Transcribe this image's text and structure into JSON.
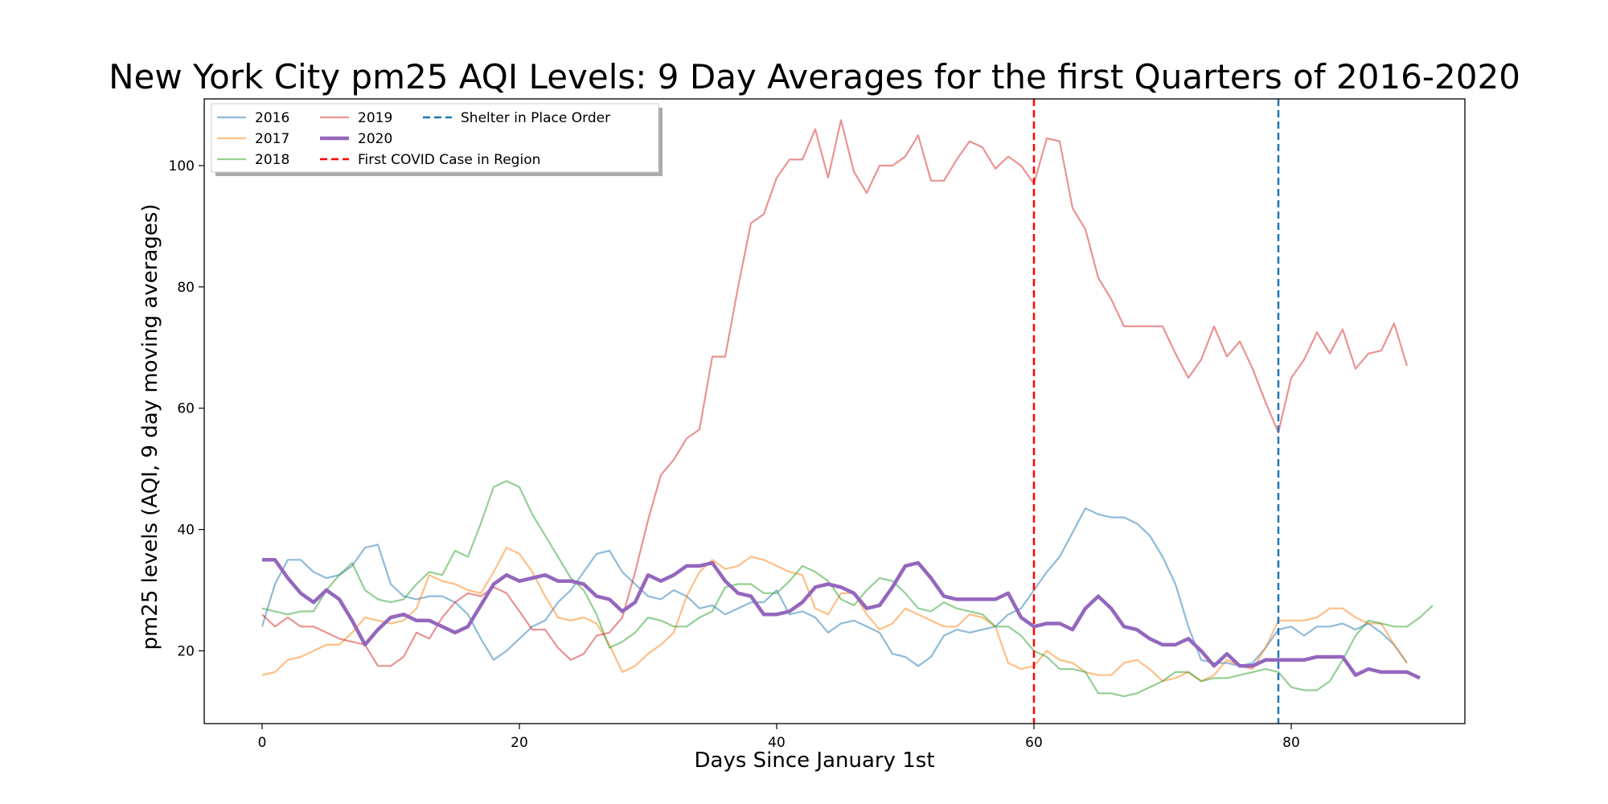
{
  "chart_data": {
    "type": "line",
    "title": "New York City pm25 AQI Levels: 9 Day Averages for the first Quarters of 2016-2020",
    "xlabel": "Days Since January 1st",
    "ylabel": "pm25 levels (AQI, 9 day moving averages)",
    "xlim": [
      -4.5,
      93.5
    ],
    "ylim": [
      8,
      111
    ],
    "xticks": [
      0,
      20,
      40,
      60,
      80
    ],
    "yticks": [
      20,
      40,
      60,
      80,
      100
    ],
    "grid": false,
    "legend_position": "top-left",
    "series": [
      {
        "name": "2016",
        "color": "#1f77b4",
        "values": [
          24,
          31,
          35,
          35,
          33,
          32,
          32.5,
          34,
          37,
          37.5,
          31,
          29,
          28.5,
          29,
          29,
          28,
          26,
          22,
          18.5,
          20,
          22,
          24,
          25,
          28,
          30,
          33,
          36,
          36.5,
          33,
          31,
          29,
          28.5,
          30,
          29,
          27,
          27.5,
          26,
          27,
          28,
          28,
          30,
          26,
          26.5,
          25.5,
          23,
          24.5,
          25,
          24,
          23,
          19.5,
          19,
          17.5,
          19,
          22.5,
          23.5,
          23,
          23.5,
          24,
          26,
          27,
          30,
          33,
          35.5,
          39.5,
          43.5,
          42.5,
          42,
          42,
          41,
          39,
          35.5,
          31,
          24,
          18.5,
          18,
          18,
          17.5,
          18,
          20.5,
          23.5,
          24,
          22.5,
          24,
          24,
          24.5,
          23.5,
          24.5,
          23,
          21,
          18
        ]
      },
      {
        "name": "2017",
        "color": "#ff7f0e",
        "values": [
          16,
          16.5,
          18.5,
          19,
          20,
          21,
          21,
          23,
          25.5,
          25,
          24.5,
          25,
          27,
          32.5,
          31.5,
          31,
          30,
          29.5,
          33,
          37,
          36,
          33,
          29,
          25.5,
          25,
          25.5,
          24.5,
          21,
          16.5,
          17.5,
          19.5,
          21,
          23,
          29,
          33,
          35,
          33.5,
          34,
          35.5,
          35,
          34,
          33,
          32.5,
          27,
          26,
          29.5,
          29.5,
          26,
          23.5,
          24.5,
          27,
          26,
          25,
          24,
          24,
          26,
          25.5,
          24,
          18,
          17,
          17.5,
          20,
          18.5,
          18,
          16.5,
          16,
          16,
          18,
          18.5,
          17,
          15,
          15.5,
          16.5,
          15,
          16,
          18.5,
          17.5,
          17,
          20.5,
          25,
          25,
          25,
          25.5,
          27,
          27,
          25.5,
          24.5,
          24.5,
          21,
          18
        ]
      },
      {
        "name": "2018",
        "color": "#2ca02c",
        "values": [
          27,
          26.5,
          26,
          26.5,
          26.5,
          30,
          32.5,
          34.5,
          30,
          28.5,
          28,
          28.5,
          31,
          33,
          32.5,
          36.5,
          35.5,
          41,
          47,
          48,
          47,
          42.5,
          39,
          35.5,
          32,
          30,
          26,
          20.5,
          21.5,
          23,
          25.5,
          25,
          24,
          24,
          25.5,
          26.5,
          30.5,
          31,
          31,
          29.5,
          29.5,
          31.5,
          34,
          33,
          31.5,
          28.5,
          27.5,
          30,
          32,
          31.5,
          29.5,
          27,
          26.5,
          28,
          27,
          26.5,
          26,
          24,
          24,
          22.5,
          20,
          19,
          17,
          17,
          16.5,
          13,
          13,
          12.5,
          13,
          14,
          15,
          16.5,
          16.5,
          15,
          15.5,
          15.5,
          16,
          16.5,
          17,
          16.5,
          14,
          13.5,
          13.5,
          15,
          18.5,
          22.5,
          25,
          24.5,
          24,
          24,
          25.5,
          27.5
        ]
      },
      {
        "name": "2019",
        "color": "#d62728",
        "values": [
          26,
          24,
          25.5,
          24,
          24,
          23,
          22,
          21.5,
          21,
          17.5,
          17.5,
          19,
          23,
          22,
          25.5,
          28,
          29.5,
          29,
          30.5,
          29.5,
          26.5,
          23.5,
          23.5,
          20.5,
          18.5,
          19.5,
          22.5,
          23,
          25.5,
          33,
          41.5,
          49,
          51.5,
          55,
          56.5,
          68.5,
          68.5,
          80,
          90.5,
          92,
          98,
          101,
          101,
          106,
          98,
          107.5,
          99,
          95.5,
          100,
          100,
          101.5,
          105,
          97.5,
          97.5,
          101,
          104,
          103,
          99.5,
          101.5,
          100,
          97,
          104.5,
          104,
          93,
          89.5,
          81.5,
          78,
          73.5,
          73.5,
          73.5,
          73.5,
          69,
          65,
          68,
          73.5,
          68.5,
          71,
          66.5,
          61,
          56,
          65,
          68,
          72.5,
          69,
          73,
          66.5,
          69,
          69.5,
          74,
          67
        ]
      },
      {
        "name": "2020",
        "color": "#9467bd",
        "values": [
          35,
          35,
          32,
          29.5,
          28,
          30,
          28.5,
          25,
          21,
          23.5,
          25.5,
          26,
          25,
          25,
          24,
          23,
          24,
          27.5,
          31,
          32.5,
          31.5,
          32,
          32.5,
          31.5,
          31.5,
          31,
          29,
          28.5,
          26.5,
          28,
          32.5,
          31.5,
          32.5,
          34,
          34,
          34.5,
          31.5,
          29.5,
          29,
          26,
          26,
          26.5,
          28,
          30.5,
          31,
          30.5,
          29.5,
          27,
          27.5,
          30.5,
          34,
          34.5,
          32,
          29,
          28.5,
          28.5,
          28.5,
          28.5,
          29.5,
          25.5,
          24,
          24.5,
          24.5,
          23.5,
          27,
          29,
          27,
          24,
          23.5,
          22,
          21,
          21,
          22,
          20,
          17.5,
          19.5,
          17.5,
          17.5,
          18.5,
          18.5,
          18.5,
          18.5,
          19,
          19,
          19,
          16,
          17,
          16.5,
          16.5,
          16.5,
          15.5
        ]
      }
    ],
    "reference_lines": [
      {
        "name": "First COVID Case in Region",
        "x": 60,
        "color": "#ff0000"
      },
      {
        "name": "Shelter in Place Order",
        "x": 79,
        "color": "#1f77b4"
      }
    ]
  }
}
